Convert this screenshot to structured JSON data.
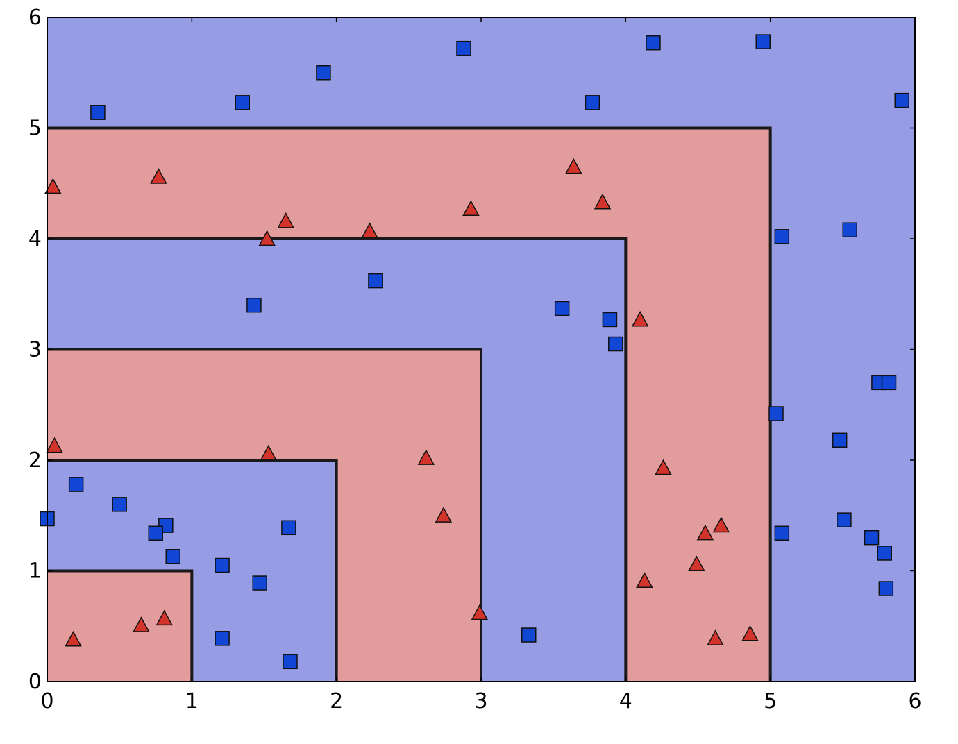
{
  "chart_data": {
    "type": "scatter",
    "title": "",
    "xlabel": "",
    "ylabel": "",
    "xlim": [
      0,
      6
    ],
    "ylim": [
      0,
      6
    ],
    "x_ticks": [
      "0",
      "1",
      "2",
      "3",
      "4",
      "5",
      "6"
    ],
    "y_ticks": [
      "0",
      "1",
      "2",
      "3",
      "4",
      "5",
      "6"
    ],
    "grid": false,
    "legend": null,
    "colors": {
      "region_blue": "#979de4",
      "region_red": "#e29c9c",
      "boundary": "#1a1a1a",
      "square_fill": "#1247d6",
      "triangle_fill": "#d2342b",
      "marker_edge": "#111111"
    },
    "regions": [
      {
        "class": "blue",
        "x": [
          0,
          6
        ],
        "y": [
          0,
          6
        ]
      },
      {
        "class": "red",
        "x": [
          0,
          5
        ],
        "y": [
          0,
          5
        ]
      },
      {
        "class": "blue",
        "x": [
          0,
          4
        ],
        "y": [
          0,
          4
        ]
      },
      {
        "class": "red",
        "x": [
          0,
          3
        ],
        "y": [
          0,
          3
        ]
      },
      {
        "class": "blue",
        "x": [
          0,
          2
        ],
        "y": [
          0,
          2
        ]
      },
      {
        "class": "red",
        "x": [
          0,
          1
        ],
        "y": [
          0,
          1
        ]
      }
    ],
    "series": [
      {
        "marker": "square",
        "color": "#1247d6",
        "points": [
          [
            0.35,
            5.14
          ],
          [
            1.35,
            5.23
          ],
          [
            1.91,
            5.5
          ],
          [
            2.88,
            5.72
          ],
          [
            4.19,
            5.77
          ],
          [
            4.95,
            5.78
          ],
          [
            3.77,
            5.23
          ],
          [
            5.91,
            5.25
          ],
          [
            5.08,
            4.02
          ],
          [
            5.55,
            4.08
          ],
          [
            2.27,
            3.62
          ],
          [
            1.43,
            3.4
          ],
          [
            3.56,
            3.37
          ],
          [
            3.89,
            3.27
          ],
          [
            3.93,
            3.05
          ],
          [
            5.75,
            2.7
          ],
          [
            5.82,
            2.7
          ],
          [
            5.04,
            2.42
          ],
          [
            5.48,
            2.18
          ],
          [
            0.2,
            1.78
          ],
          [
            0.5,
            1.6
          ],
          [
            0.0,
            1.47
          ],
          [
            0.82,
            1.41
          ],
          [
            0.75,
            1.34
          ],
          [
            1.67,
            1.39
          ],
          [
            0.87,
            1.13
          ],
          [
            1.21,
            1.05
          ],
          [
            1.47,
            0.89
          ],
          [
            1.21,
            0.39
          ],
          [
            1.68,
            0.18
          ],
          [
            3.33,
            0.42
          ],
          [
            5.08,
            1.34
          ],
          [
            5.51,
            1.46
          ],
          [
            5.7,
            1.3
          ],
          [
            5.79,
            1.16
          ],
          [
            5.8,
            0.84
          ]
        ]
      },
      {
        "marker": "triangle",
        "color": "#d2342b",
        "points": [
          [
            0.04,
            4.47
          ],
          [
            0.77,
            4.56
          ],
          [
            1.65,
            4.16
          ],
          [
            1.52,
            4.0
          ],
          [
            2.23,
            4.07
          ],
          [
            2.93,
            4.27
          ],
          [
            3.64,
            4.65
          ],
          [
            3.84,
            4.33
          ],
          [
            4.1,
            3.27
          ],
          [
            0.05,
            2.13
          ],
          [
            1.53,
            2.06
          ],
          [
            2.62,
            2.02
          ],
          [
            2.74,
            1.5
          ],
          [
            4.26,
            1.93
          ],
          [
            4.55,
            1.34
          ],
          [
            4.66,
            1.41
          ],
          [
            4.49,
            1.06
          ],
          [
            4.13,
            0.91
          ],
          [
            0.18,
            0.38
          ],
          [
            0.65,
            0.51
          ],
          [
            0.81,
            0.57
          ],
          [
            2.99,
            0.62
          ],
          [
            4.62,
            0.39
          ],
          [
            4.86,
            0.43
          ]
        ]
      }
    ]
  }
}
